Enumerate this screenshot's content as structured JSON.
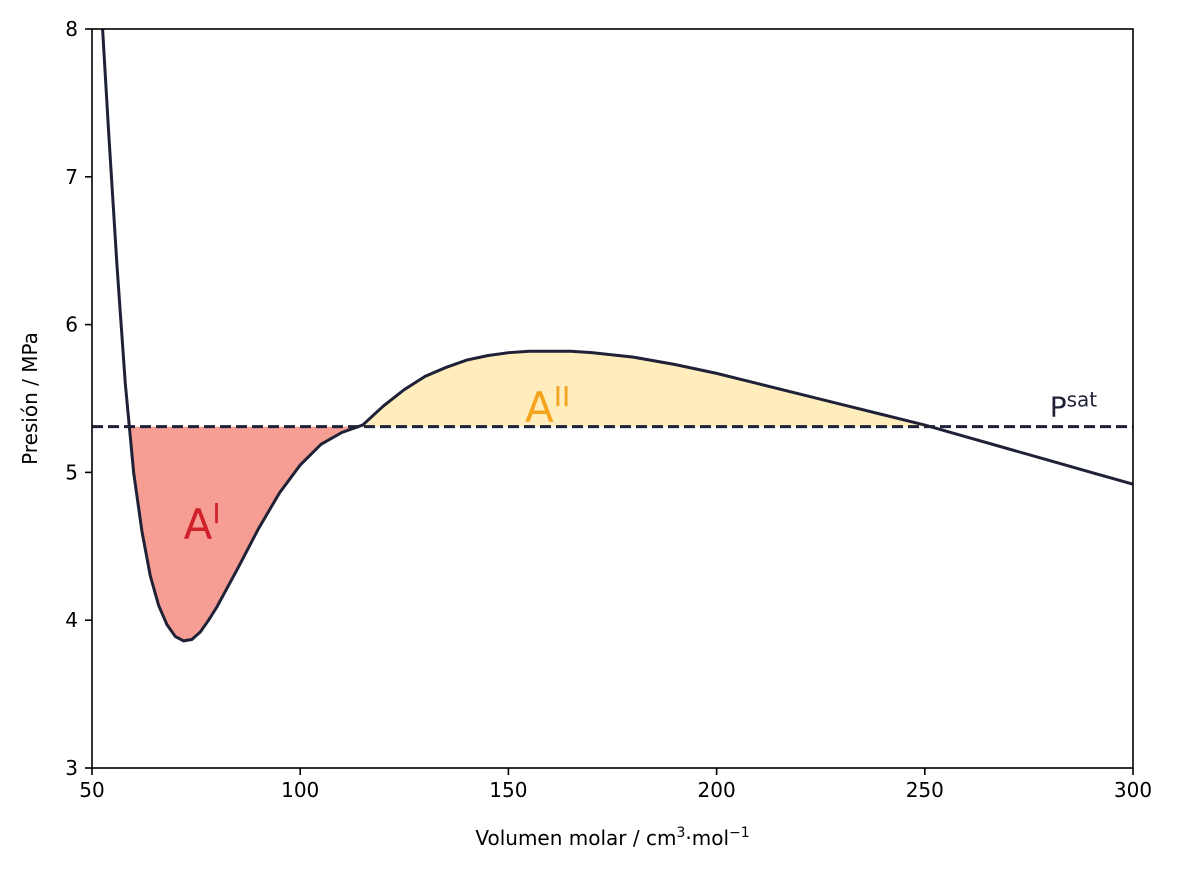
{
  "chart_data": {
    "type": "line",
    "xlabel": {
      "text": "Volumen molar / cm",
      "sup1": "3",
      "mid": "·mol",
      "sup2": "−1"
    },
    "ylabel": "Presión / MPa",
    "xlim": [
      50,
      300
    ],
    "ylim": [
      3,
      8
    ],
    "x_ticks": [
      "50",
      "100",
      "150",
      "200",
      "250",
      "300"
    ],
    "y_ticks": [
      "3",
      "4",
      "5",
      "6",
      "7",
      "8"
    ],
    "grid": false,
    "legend": "none",
    "psat": 5.31,
    "psat_label": {
      "base": "P",
      "sup": "sat"
    },
    "regions": [
      {
        "base": "A",
        "sup": "I",
        "x_range": [
          58.8,
          115.5
        ],
        "label_pos": [
          72,
          4.55
        ],
        "fill": "#f69e94",
        "text_color": "#d0202a"
      },
      {
        "base": "A",
        "sup": "II",
        "x_range": [
          115.5,
          252.7
        ],
        "label_pos": [
          154,
          5.34
        ],
        "fill": "#ffedbd",
        "text_color": "#f5a31c"
      }
    ],
    "series": [
      {
        "x": [
          52.5,
          54,
          56,
          58,
          60,
          62,
          64,
          66,
          68,
          70,
          72,
          74,
          76,
          78,
          80,
          85,
          90,
          95,
          100,
          105,
          110,
          115,
          120,
          125,
          130,
          135,
          140,
          145,
          150,
          155,
          160,
          165,
          170,
          180,
          190,
          200,
          210,
          220,
          230,
          240,
          250,
          260,
          270,
          280,
          290,
          300
        ],
        "y": [
          8.02,
          7.3,
          6.4,
          5.6,
          5.0,
          4.6,
          4.3,
          4.1,
          3.97,
          3.89,
          3.86,
          3.87,
          3.92,
          4.0,
          4.09,
          4.35,
          4.62,
          4.86,
          5.05,
          5.19,
          5.27,
          5.32,
          5.45,
          5.56,
          5.65,
          5.71,
          5.76,
          5.79,
          5.81,
          5.82,
          5.82,
          5.82,
          5.81,
          5.78,
          5.73,
          5.67,
          5.6,
          5.53,
          5.46,
          5.39,
          5.32,
          5.24,
          5.16,
          5.08,
          5.0,
          4.92
        ],
        "color": "#1f2237"
      }
    ]
  }
}
